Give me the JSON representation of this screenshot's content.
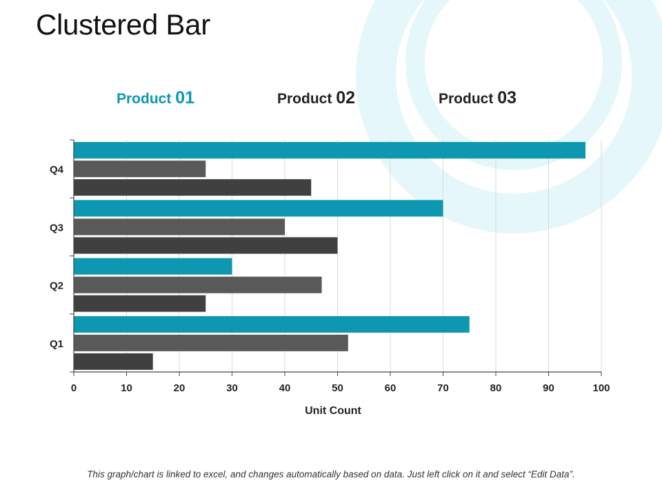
{
  "slide": {
    "title": "Clustered Bar",
    "footnote": "This graph/chart is linked to excel, and changes automatically based on data. Just left click on it and select “Edit Data”."
  },
  "legend": [
    {
      "name": "Product",
      "num": "01",
      "color": "#0e97b0"
    },
    {
      "name": "Product",
      "num": "02",
      "color": "#222222"
    },
    {
      "name": "Product",
      "num": "03",
      "color": "#222222"
    }
  ],
  "colors": {
    "series": [
      "#0e97b0",
      "#595959",
      "#404040"
    ],
    "gridline": "#d9d9d9",
    "axis": "#444444",
    "decor": "#e6f7fb"
  },
  "chart_data": {
    "type": "bar",
    "orientation": "horizontal",
    "categories": [
      "Q1",
      "Q2",
      "Q3",
      "Q4"
    ],
    "series": [
      {
        "name": "Product 01",
        "values": [
          75,
          30,
          70,
          97
        ]
      },
      {
        "name": "Product 02",
        "values": [
          52,
          47,
          40,
          25
        ]
      },
      {
        "name": "Product 03",
        "values": [
          15,
          25,
          50,
          45
        ]
      }
    ],
    "xlabel": "Unit Count",
    "ylabel": "",
    "xlim": [
      0,
      100
    ],
    "xticks": [
      0,
      10,
      20,
      30,
      40,
      50,
      60,
      70,
      80,
      90,
      100
    ],
    "grid": true,
    "legend_position": "top"
  }
}
